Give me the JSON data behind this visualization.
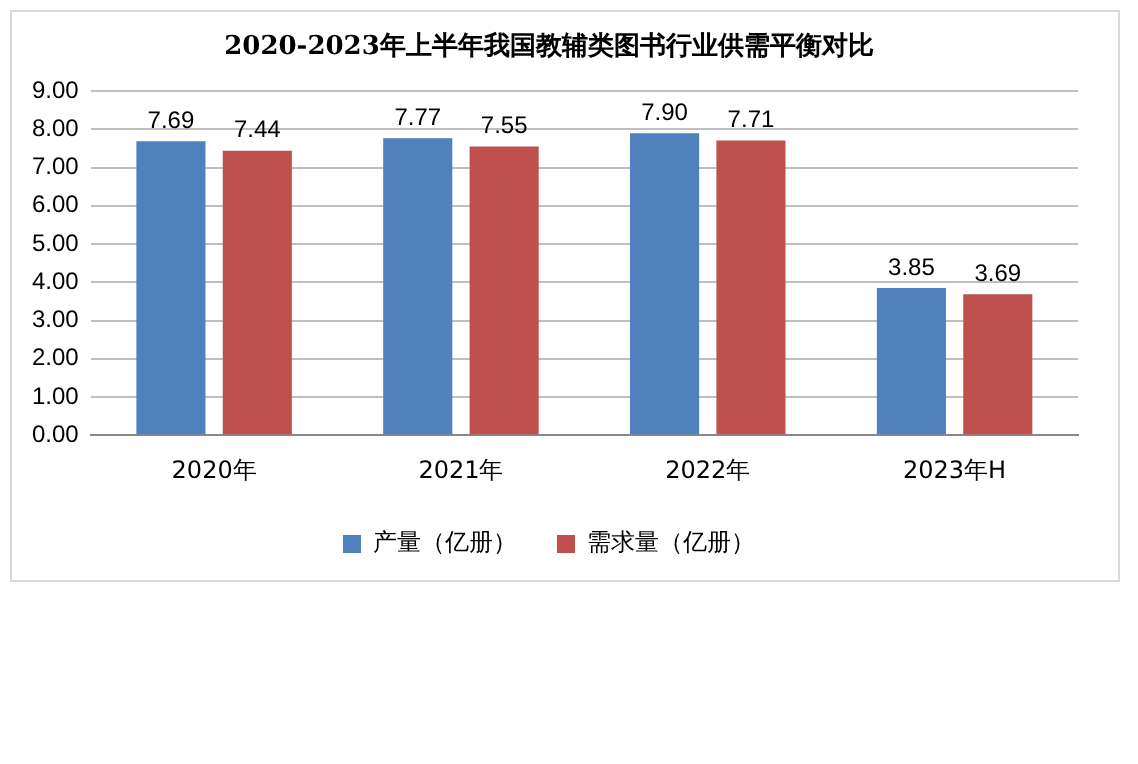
{
  "chart_data": {
    "type": "bar",
    "title": "2020-2023年上半年我国教辅类图书行业供需平衡对比",
    "categories": [
      "2020年",
      "2021年",
      "2022年",
      "2023年H"
    ],
    "series": [
      {
        "name": "产量（亿册）",
        "color": "#4f81bd",
        "values": [
          7.69,
          7.77,
          7.9,
          3.85
        ],
        "value_labels": [
          "7.69",
          "7.77",
          "7.90",
          "3.85"
        ]
      },
      {
        "name": "需求量（亿册）",
        "color": "#c0504d",
        "values": [
          7.44,
          7.55,
          7.71,
          3.69
        ],
        "value_labels": [
          "7.44",
          "7.55",
          "7.71",
          "3.69"
        ]
      }
    ],
    "ylim": [
      0,
      9
    ],
    "yticks": [
      {
        "value": 0,
        "label": "0.00"
      },
      {
        "value": 1,
        "label": "1.00"
      },
      {
        "value": 2,
        "label": "2.00"
      },
      {
        "value": 3,
        "label": "3.00"
      },
      {
        "value": 4,
        "label": "4.00"
      },
      {
        "value": 5,
        "label": "5.00"
      },
      {
        "value": 6,
        "label": "6.00"
      },
      {
        "value": 7,
        "label": "7.00"
      },
      {
        "value": 8,
        "label": "8.00"
      },
      {
        "value": 9,
        "label": "9.00"
      }
    ],
    "grid": "y",
    "legend": "bottom"
  }
}
